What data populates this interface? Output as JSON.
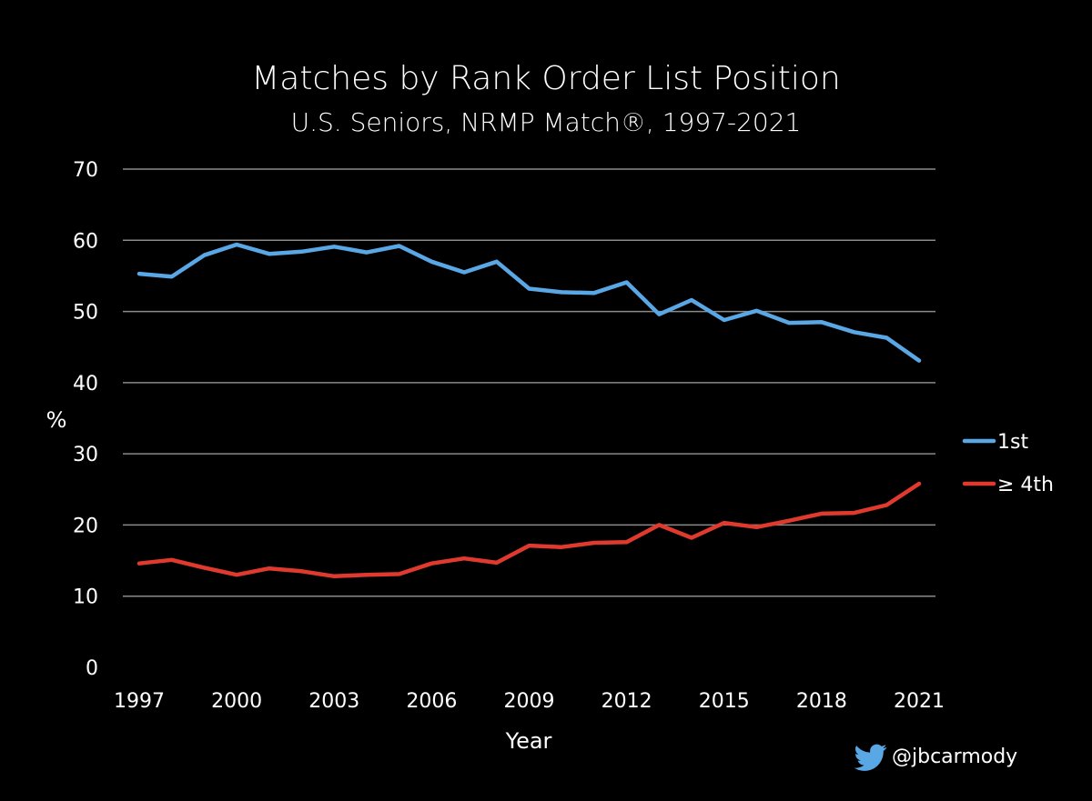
{
  "chart_data": {
    "type": "line",
    "title": "Matches by Rank Order List Position",
    "subtitle": "U.S. Seniors, NRMP Match®, 1997-2021",
    "xlabel": "Year",
    "ylabel": "%",
    "ylim": [
      0,
      70
    ],
    "yticks": [
      "0",
      "10",
      "20",
      "30",
      "40",
      "50",
      "60",
      "70"
    ],
    "xticks": [
      "1997",
      "2000",
      "2003",
      "2006",
      "2009",
      "2012",
      "2015",
      "2018",
      "2021"
    ],
    "x": [
      1997,
      1998,
      1999,
      2000,
      2001,
      2002,
      2003,
      2004,
      2005,
      2006,
      2007,
      2008,
      2009,
      2010,
      2011,
      2012,
      2013,
      2014,
      2015,
      2016,
      2017,
      2018,
      2019,
      2020,
      2021
    ],
    "grid": true,
    "legend_position": "right",
    "series": [
      {
        "name": "1st",
        "color": "#5aa7e6",
        "values": [
          55.3,
          54.9,
          57.9,
          59.4,
          58.1,
          58.4,
          59.1,
          58.3,
          59.2,
          57.0,
          55.5,
          57.0,
          53.2,
          52.7,
          52.6,
          54.1,
          49.6,
          51.6,
          48.8,
          50.1,
          48.4,
          48.5,
          47.1,
          46.3,
          43.1
        ]
      },
      {
        "name": "≥ 4th",
        "color": "#e03a2f",
        "values": [
          14.6,
          15.1,
          14.0,
          13.0,
          13.9,
          13.5,
          12.8,
          13.0,
          13.1,
          14.6,
          15.3,
          14.7,
          17.1,
          16.9,
          17.5,
          17.6,
          20.0,
          18.2,
          20.3,
          19.7,
          20.6,
          21.6,
          21.7,
          22.8,
          25.8
        ]
      }
    ],
    "handle": "@jbcarmody",
    "handle_icon": "twitter-bird-icon",
    "handle_icon_color": "#5aa7e6",
    "background_color": "#000000",
    "gridline_color": "#8a8a8a"
  }
}
